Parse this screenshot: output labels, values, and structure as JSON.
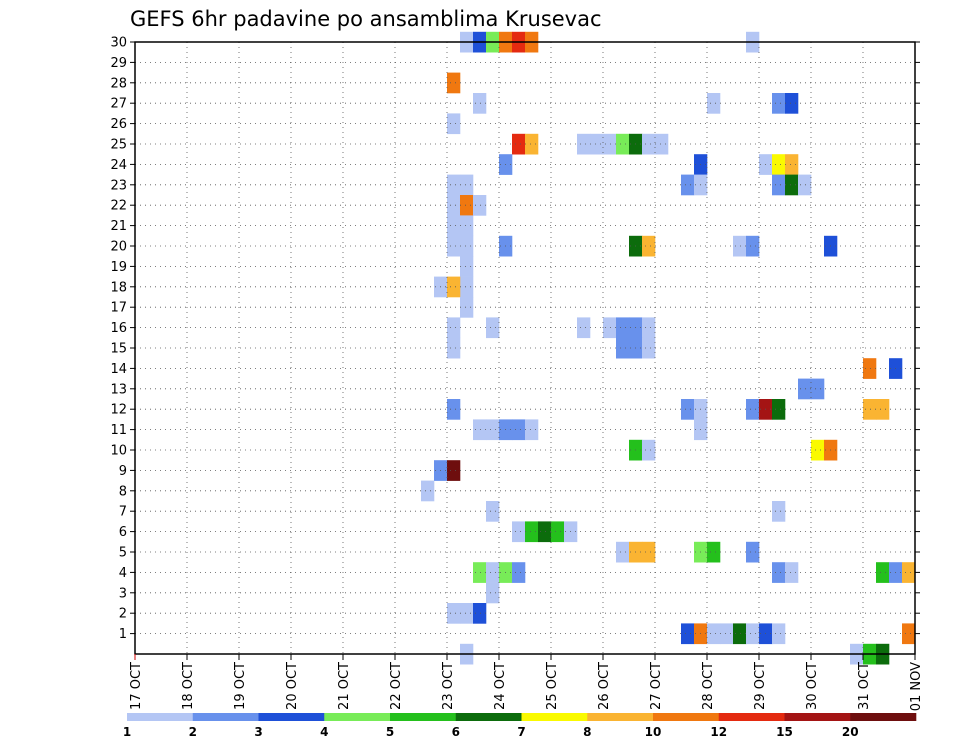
{
  "chart_data": {
    "type": "heatmap",
    "title": "GEFS 6hr padavine po ansamblima Krusevac",
    "xlabel": "",
    "ylabel": "",
    "x_ticks": [
      "17 OCT",
      "18 OCT",
      "19 OCT",
      "20 OCT",
      "21 OCT",
      "22 OCT",
      "23 OCT",
      "24 OCT",
      "25 OCT",
      "26 OCT",
      "27 OCT",
      "28 OCT",
      "29 OCT",
      "30 OCT",
      "31 OCT",
      "01 NOV"
    ],
    "y_ticks": [
      "1",
      "2",
      "3",
      "4",
      "5",
      "6",
      "7",
      "8",
      "9",
      "10",
      "11",
      "12",
      "13",
      "14",
      "15",
      "16",
      "17",
      "18",
      "19",
      "20",
      "21",
      "22",
      "23",
      "24",
      "25",
      "26",
      "27",
      "28",
      "29",
      "30"
    ],
    "x_range_days": [
      0,
      15
    ],
    "y_range": [
      0,
      30
    ],
    "grid": true,
    "colorbar": {
      "labels": [
        "1",
        "2",
        "3",
        "4",
        "5",
        "6",
        "7",
        "8",
        "10",
        "12",
        "15",
        "20"
      ],
      "colors": [
        "#b4c6f4",
        "#6891ec",
        "#1e50d8",
        "#78ec58",
        "#24c01c",
        "#0c6c0c",
        "#fafa00",
        "#fab432",
        "#f07810",
        "#e42a10",
        "#a41414",
        "#6e0e0e"
      ]
    },
    "cells_note": "each cell = [day offset from 17 OCT (6hr steps), ensemble member, color class index 1-12]",
    "cells": [
      [
        6.25,
        30,
        1
      ],
      [
        6.5,
        30,
        3
      ],
      [
        6.75,
        30,
        4
      ],
      [
        7.0,
        30,
        9
      ],
      [
        7.25,
        30,
        10
      ],
      [
        7.5,
        30,
        9
      ],
      [
        11.75,
        30,
        1
      ],
      [
        6.0,
        28,
        9
      ],
      [
        6.5,
        27,
        1
      ],
      [
        11.0,
        27,
        1
      ],
      [
        12.25,
        27,
        2
      ],
      [
        12.5,
        27,
        3
      ],
      [
        6.0,
        26,
        1
      ],
      [
        7.25,
        25,
        10
      ],
      [
        7.5,
        25,
        8
      ],
      [
        8.5,
        25,
        1
      ],
      [
        8.75,
        25,
        1
      ],
      [
        9.0,
        25,
        1
      ],
      [
        9.25,
        25,
        4
      ],
      [
        9.5,
        25,
        6
      ],
      [
        9.75,
        25,
        1
      ],
      [
        10.0,
        25,
        1
      ],
      [
        7.0,
        24,
        2
      ],
      [
        10.75,
        24,
        3
      ],
      [
        12.0,
        24,
        1
      ],
      [
        12.25,
        24,
        7
      ],
      [
        12.5,
        24,
        8
      ],
      [
        6.0,
        23,
        1
      ],
      [
        6.25,
        23,
        1
      ],
      [
        10.5,
        23,
        2
      ],
      [
        10.75,
        23,
        1
      ],
      [
        12.25,
        23,
        2
      ],
      [
        12.5,
        23,
        6
      ],
      [
        12.75,
        23,
        1
      ],
      [
        6.0,
        22,
        1
      ],
      [
        6.25,
        22,
        9
      ],
      [
        6.5,
        22,
        1
      ],
      [
        6.0,
        21,
        1
      ],
      [
        6.25,
        21,
        1
      ],
      [
        6.0,
        20,
        1
      ],
      [
        6.25,
        20,
        1
      ],
      [
        7.0,
        20,
        2
      ],
      [
        9.5,
        20,
        6
      ],
      [
        9.75,
        20,
        8
      ],
      [
        11.5,
        20,
        1
      ],
      [
        11.75,
        20,
        2
      ],
      [
        13.25,
        20,
        3
      ],
      [
        6.25,
        19,
        1
      ],
      [
        6.25,
        18,
        1
      ],
      [
        5.75,
        18,
        1
      ],
      [
        6.0,
        18,
        8
      ],
      [
        6.25,
        17,
        1
      ],
      [
        6.0,
        16,
        1
      ],
      [
        6.75,
        16,
        1
      ],
      [
        8.5,
        16,
        1
      ],
      [
        9.0,
        16,
        1
      ],
      [
        9.25,
        16,
        2
      ],
      [
        9.5,
        16,
        2
      ],
      [
        9.75,
        16,
        1
      ],
      [
        6.0,
        15,
        1
      ],
      [
        9.25,
        15,
        2
      ],
      [
        9.5,
        15,
        2
      ],
      [
        9.75,
        15,
        1
      ],
      [
        14.0,
        14,
        9
      ],
      [
        14.5,
        14,
        3
      ],
      [
        12.75,
        13,
        2
      ],
      [
        13.0,
        13,
        2
      ],
      [
        6.0,
        12,
        2
      ],
      [
        10.5,
        12,
        2
      ],
      [
        10.75,
        12,
        1
      ],
      [
        11.75,
        12,
        2
      ],
      [
        12.0,
        12,
        11
      ],
      [
        12.25,
        12,
        6
      ],
      [
        14.0,
        12,
        8
      ],
      [
        14.25,
        12,
        8
      ],
      [
        6.5,
        11,
        1
      ],
      [
        6.75,
        11,
        1
      ],
      [
        7.0,
        11,
        2
      ],
      [
        7.25,
        11,
        2
      ],
      [
        7.5,
        11,
        1
      ],
      [
        10.75,
        11,
        1
      ],
      [
        9.5,
        10,
        5
      ],
      [
        9.75,
        10,
        1
      ],
      [
        13.0,
        10,
        7
      ],
      [
        13.25,
        10,
        9
      ],
      [
        5.75,
        9,
        2
      ],
      [
        6.0,
        9,
        12
      ],
      [
        5.5,
        8,
        1
      ],
      [
        6.75,
        7,
        1
      ],
      [
        12.25,
        7,
        1
      ],
      [
        7.25,
        6,
        1
      ],
      [
        7.5,
        6,
        5
      ],
      [
        7.75,
        6,
        6
      ],
      [
        8.0,
        6,
        5
      ],
      [
        8.25,
        6,
        1
      ],
      [
        9.25,
        5,
        1
      ],
      [
        9.5,
        5,
        8
      ],
      [
        9.75,
        5,
        8
      ],
      [
        10.75,
        5,
        4
      ],
      [
        11.0,
        5,
        5
      ],
      [
        11.75,
        5,
        2
      ],
      [
        6.5,
        4,
        4
      ],
      [
        6.75,
        4,
        1
      ],
      [
        7.0,
        4,
        4
      ],
      [
        7.25,
        4,
        2
      ],
      [
        12.25,
        4,
        2
      ],
      [
        12.5,
        4,
        1
      ],
      [
        14.25,
        4,
        5
      ],
      [
        14.5,
        4,
        2
      ],
      [
        14.75,
        4,
        8
      ],
      [
        6.75,
        3,
        1
      ],
      [
        6.0,
        2,
        1
      ],
      [
        6.25,
        2,
        1
      ],
      [
        6.5,
        2,
        3
      ],
      [
        10.5,
        1,
        3
      ],
      [
        10.75,
        1,
        9
      ],
      [
        11.0,
        1,
        1
      ],
      [
        11.25,
        1,
        1
      ],
      [
        11.5,
        1,
        6
      ],
      [
        11.75,
        1,
        1
      ],
      [
        12.0,
        1,
        3
      ],
      [
        12.25,
        1,
        1
      ],
      [
        14.75,
        1,
        9
      ],
      [
        6.25,
        0,
        1
      ],
      [
        13.75,
        0,
        1
      ],
      [
        14.0,
        0,
        5
      ],
      [
        14.25,
        0,
        6
      ]
    ]
  }
}
